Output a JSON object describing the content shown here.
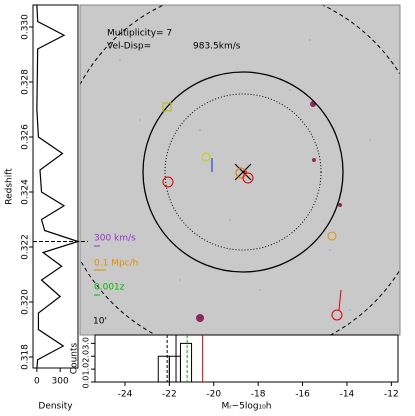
{
  "chart_data": [
    {
      "type": "line",
      "ylabel": "Redshift",
      "xlabel": "Density",
      "y": [
        0.3308,
        0.3302,
        0.3297,
        0.3292,
        0.327,
        0.326,
        0.3254,
        0.3248,
        0.324,
        0.3235,
        0.323,
        0.3226,
        0.3222,
        0.3218,
        0.3213,
        0.3208,
        0.3202,
        0.3196,
        0.319,
        0.3184,
        0.3179,
        0.3176
      ],
      "values": [
        0,
        10,
        350,
        10,
        0,
        20,
        330,
        40,
        60,
        350,
        60,
        100,
        530,
        80,
        320,
        60,
        300,
        20,
        20,
        340,
        10,
        0
      ],
      "color": "#000000",
      "ylim": [
        0.3176,
        0.3308
      ],
      "xlim": [
        -50,
        530
      ],
      "yticks": [
        0.318,
        {
          "value": 0.32,
          "label": "0.320"
        },
        0.322,
        0.324,
        0.326,
        0.328,
        {
          "value": 0.33,
          "label": "0.330"
        }
      ],
      "xticks": [
        0,
        300
      ],
      "hline": 0.3222
    },
    {
      "type": "image",
      "annotations": [
        "Multiplicity= 7",
        "Vel-Disp=",
        "983.5km/s",
        "300 km/s",
        "0.1 Mpc/h",
        "0.001z",
        "10'"
      ]
    },
    {
      "type": "histogram",
      "ylabel": "Counts",
      "xlabel": "Mᵣ−5log₁₀h",
      "bins": [
        -22.5,
        -22,
        -21.5,
        -21
      ],
      "values": [
        2,
        2,
        3
      ],
      "xlim": [
        -25.35,
        -11.7
      ],
      "ylim": [
        0,
        3.65
      ],
      "xticks": [
        -24,
        -22,
        -20,
        -18,
        -16,
        -14,
        -12
      ],
      "yticks": [
        {
          "value": 0,
          "label": "0.0"
        },
        {
          "value": 1,
          "label": "1.0"
        },
        {
          "value": 2,
          "label": "2.0"
        },
        {
          "value": 3,
          "label": "3.0"
        }
      ],
      "vlines": [
        -22.1,
        -21.7,
        -21.2,
        -20.5
      ],
      "vline_colors": [
        "#000000",
        "#000000",
        "#00aa00",
        "#dd0000"
      ]
    }
  ]
}
